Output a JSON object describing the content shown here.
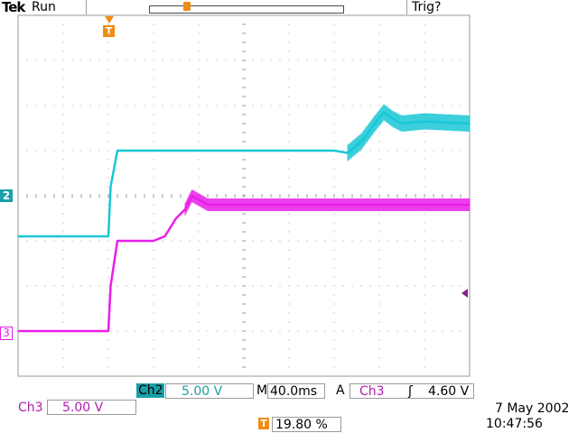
{
  "header": {
    "brand": "Tek",
    "status": "Run",
    "trigger_status": "Trig?",
    "trigger_marker_label": "T"
  },
  "channels": {
    "ch2": {
      "marker_label": "2",
      "color": "#19c7d6"
    },
    "ch3": {
      "marker_label": "3",
      "color": "#e81ee8"
    }
  },
  "readouts": {
    "ch2_label": "Ch2",
    "ch2_scale": "5.00 V",
    "timebase_prefix": "M",
    "timebase": "40.0ms",
    "trigger_mode": "A",
    "trigger_source": "Ch3",
    "trigger_slope": "ʃ",
    "trigger_level": "4.60 V",
    "ch3_label": "Ch3",
    "ch3_scale": "5.00 V",
    "trigger_pos_icon": "T",
    "trigger_position": "19.80 %",
    "date": "7 May 2002",
    "time": "10:47:56"
  },
  "colors": {
    "grid": "#9a9a9a",
    "ch2": "#19c7d6",
    "ch3": "#e81ee8",
    "trigger": "#f08c14",
    "ch2_bg": "#19a0a8",
    "level_marker": "#8a1e8a"
  },
  "chart_data": {
    "type": "line",
    "x_divisions": 10,
    "y_divisions": 8,
    "series": [
      {
        "name": "Ch2",
        "x": [
          0,
          2.0,
          2.05,
          2.2,
          3.0,
          4.0,
          5.0,
          6.0,
          7.0,
          7.3,
          7.6,
          7.9,
          8.1,
          8.3,
          8.5,
          9.0,
          10.0
        ],
        "y": [
          -0.9,
          -0.9,
          0.2,
          1.0,
          1.0,
          1.0,
          1.0,
          1.0,
          1.0,
          0.95,
          1.2,
          1.6,
          1.85,
          1.7,
          1.6,
          1.65,
          1.6
        ]
      },
      {
        "name": "Ch3",
        "x": [
          0,
          2.0,
          2.05,
          2.2,
          3.0,
          3.25,
          3.5,
          3.7,
          3.85,
          4.2,
          6.0,
          8.0,
          10.0
        ],
        "y": [
          -3.0,
          -3.0,
          -2.0,
          -1.0,
          -1.0,
          -0.9,
          -0.5,
          -0.3,
          0.0,
          -0.2,
          -0.2,
          -0.2,
          -0.2
        ]
      }
    ]
  }
}
